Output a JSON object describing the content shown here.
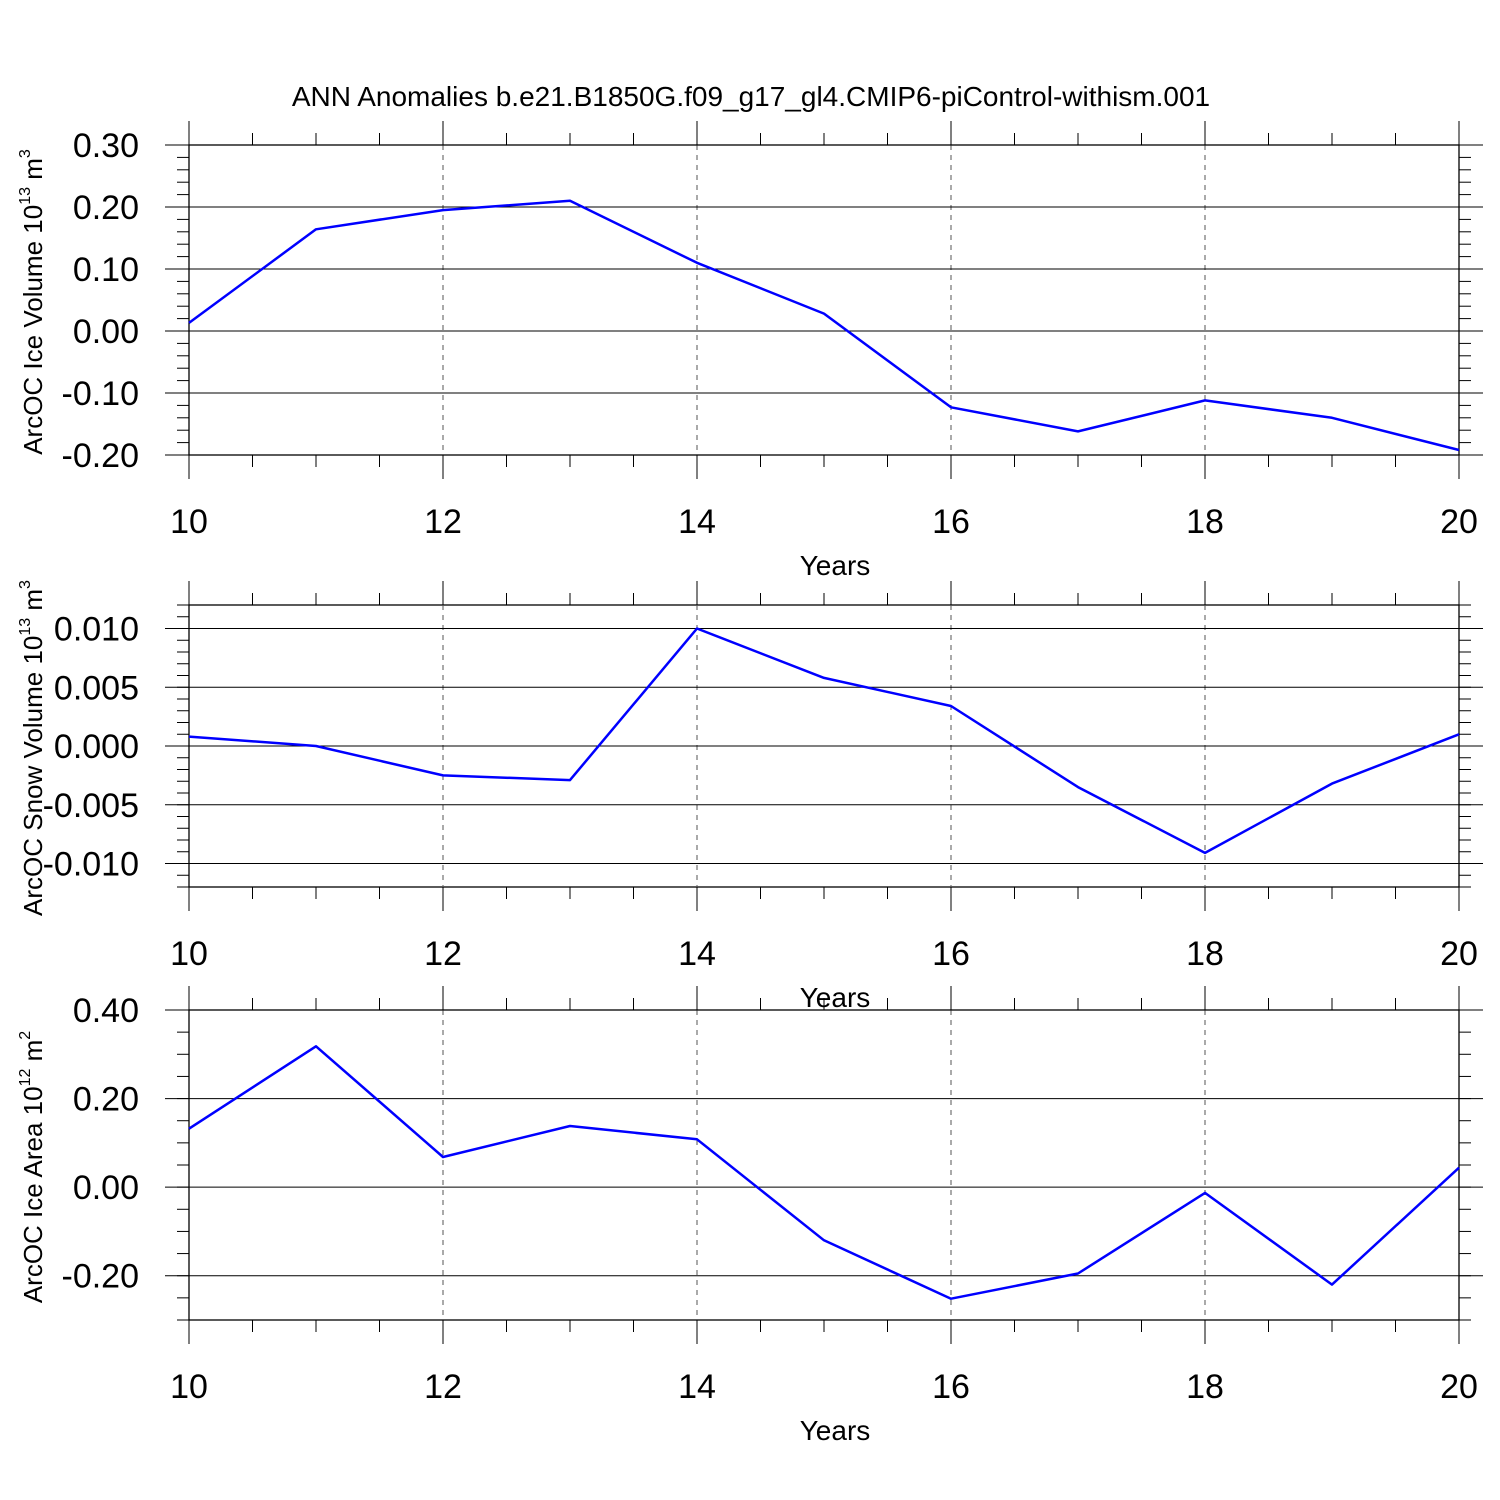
{
  "title": "ANN Anomalies b.e21.B1850G.f09_g17_gl4.CMIP6-piControl-withism.001",
  "colors": {
    "series": "#0000ff",
    "axes": "#000000"
  },
  "chart_data": [
    {
      "type": "line",
      "name": "ice-volume",
      "ylabel": {
        "main": "ArcOC Ice Volume 10",
        "sup": "13",
        "unit": " m",
        "unit_sup": "3"
      },
      "xlabel": "Years",
      "xlim": [
        10,
        20
      ],
      "ylim": [
        -0.2,
        0.3
      ],
      "xticks": [
        10,
        12,
        14,
        16,
        18,
        20
      ],
      "xtick_labels": [
        "10",
        "12",
        "14",
        "16",
        "18",
        "20"
      ],
      "xminor": 0.5,
      "yticks": [
        -0.2,
        -0.1,
        0.0,
        0.1,
        0.2,
        0.3
      ],
      "ytick_labels": [
        "-0.20",
        "-0.10",
        "0.00",
        "0.10",
        "0.20",
        "0.30"
      ],
      "yminor": 0.02,
      "x": [
        10,
        11,
        12,
        13,
        14,
        15,
        16,
        17,
        18,
        19,
        20
      ],
      "values": [
        0.013,
        0.164,
        0.195,
        0.21,
        0.11,
        0.028,
        -0.123,
        -0.162,
        -0.112,
        -0.14,
        -0.192
      ]
    },
    {
      "type": "line",
      "name": "snow-volume",
      "ylabel": {
        "main": "ArcOC Snow Volume 10",
        "sup": "13",
        "unit": " m",
        "unit_sup": "3"
      },
      "xlabel": "Years",
      "xlim": [
        10,
        20
      ],
      "ylim": [
        -0.012,
        0.012
      ],
      "xticks": [
        10,
        12,
        14,
        16,
        18,
        20
      ],
      "xtick_labels": [
        "10",
        "12",
        "14",
        "16",
        "18",
        "20"
      ],
      "xminor": 0.5,
      "yticks": [
        -0.01,
        -0.005,
        0.0,
        0.005,
        0.01
      ],
      "ytick_labels": [
        "-0.010",
        "-0.005",
        "0.000",
        "0.005",
        "0.010"
      ],
      "yminor": 0.001,
      "x": [
        10,
        11,
        12,
        13,
        14,
        15,
        16,
        17,
        18,
        19,
        20
      ],
      "values": [
        0.0008,
        0.0,
        -0.0025,
        -0.0029,
        0.01,
        0.0058,
        0.0034,
        -0.0035,
        -0.0091,
        -0.0032,
        0.001
      ]
    },
    {
      "type": "line",
      "name": "ice-area",
      "ylabel": {
        "main": "ArcOC Ice Area 10",
        "sup": "12",
        "unit": " m",
        "unit_sup": "2"
      },
      "xlabel": "Years",
      "xlim": [
        10,
        20
      ],
      "ylim": [
        -0.3,
        0.4
      ],
      "xticks": [
        10,
        12,
        14,
        16,
        18,
        20
      ],
      "xtick_labels": [
        "10",
        "12",
        "14",
        "16",
        "18",
        "20"
      ],
      "xminor": 0.5,
      "yticks": [
        -0.2,
        0.0,
        0.2,
        0.4
      ],
      "ytick_labels": [
        "-0.20",
        "0.00",
        "0.20",
        "0.40"
      ],
      "yminor": 0.05,
      "x": [
        10,
        11,
        12,
        13,
        14,
        15,
        16,
        17,
        18,
        19,
        20
      ],
      "values": [
        0.132,
        0.318,
        0.068,
        0.138,
        0.108,
        -0.12,
        -0.252,
        -0.195,
        -0.013,
        -0.22,
        0.044
      ]
    }
  ]
}
